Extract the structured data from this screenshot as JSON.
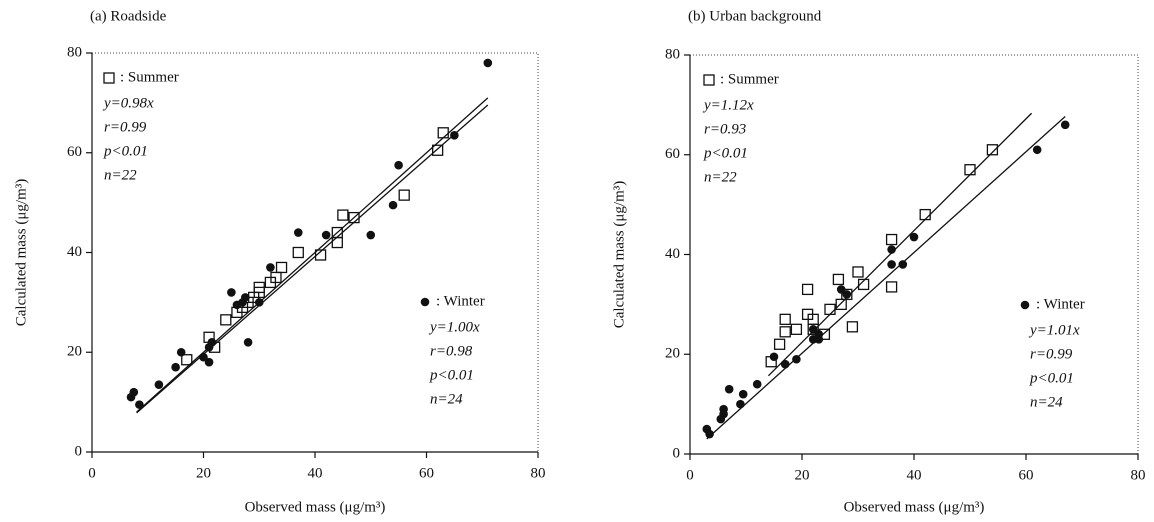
{
  "chart_data": [
    {
      "type": "scatter",
      "title": "(a) Roadside",
      "x_label": "Observed mass (μg/m³)",
      "y_label": "Calculated mass (μg/m³)",
      "xlim": [
        0,
        80
      ],
      "ylim": [
        0,
        80
      ],
      "xticks": [
        0,
        20,
        40,
        60,
        80
      ],
      "yticks": [
        0,
        20,
        40,
        60,
        80
      ],
      "series": [
        {
          "name": ": Summer",
          "marker": "square",
          "color": "#111111",
          "x": [
            21,
            24,
            27,
            28,
            30,
            30,
            32,
            33,
            34,
            37,
            41,
            44,
            44,
            45,
            47,
            56,
            62,
            63,
            22,
            17,
            26,
            29
          ],
          "y": [
            23,
            26.5,
            29,
            30,
            33,
            32,
            34,
            35,
            37,
            40,
            39.5,
            42,
            44,
            47.5,
            47,
            51.5,
            60.5,
            64,
            21,
            18.5,
            28,
            31
          ],
          "fit_slope": 0.98,
          "fit_x": [
            8,
            71
          ],
          "annotations": [
            "y=0.98x",
            "r=0.99",
            "p<0.01",
            "n=22"
          ]
        },
        {
          "name": ": Winter",
          "marker": "dot",
          "color": "#111111",
          "x": [
            7,
            7.5,
            8.5,
            12,
            15,
            16,
            21,
            21,
            21.5,
            25,
            26,
            27,
            27.5,
            28,
            30,
            32,
            37,
            42,
            50,
            54,
            55,
            65,
            71,
            20
          ],
          "y": [
            11,
            12,
            9.5,
            13.5,
            17,
            20,
            18,
            21,
            22,
            32,
            29.5,
            30,
            31,
            22,
            30,
            37,
            44,
            43.5,
            43.5,
            49.5,
            57.5,
            63.5,
            78,
            19
          ],
          "fit_slope": 1.0,
          "fit_x": [
            8,
            71
          ],
          "annotations": [
            "y=1.00x",
            "r=0.98",
            "p<0.01",
            "n=24"
          ]
        }
      ]
    },
    {
      "type": "scatter",
      "title": "(b) Urban background",
      "x_label": "Observed mass (μg/m³)",
      "y_label": "Calculated mass (μg/m³)",
      "xlim": [
        0,
        80
      ],
      "ylim": [
        0,
        80
      ],
      "xticks": [
        0,
        20,
        40,
        60,
        80
      ],
      "yticks": [
        0,
        20,
        40,
        60,
        80
      ],
      "series": [
        {
          "name": ": Summer",
          "marker": "square",
          "color": "#111111",
          "x": [
            14.5,
            16,
            17,
            17,
            19,
            21,
            21,
            22,
            25,
            26.5,
            27,
            29,
            30,
            31,
            36,
            36,
            42,
            50,
            54,
            22,
            28,
            24
          ],
          "y": [
            18.5,
            22,
            24.5,
            27,
            25,
            28,
            33,
            27,
            29,
            35,
            30,
            25.5,
            36.5,
            34,
            43,
            33.5,
            48,
            57,
            61,
            25,
            32,
            24
          ],
          "fit_slope": 1.12,
          "fit_x": [
            14,
            61
          ],
          "annotations": [
            "y=1.12x",
            "r=0.93",
            "p<0.01",
            "n=22"
          ]
        },
        {
          "name": ": Winter",
          "marker": "dot",
          "color": "#111111",
          "x": [
            3,
            3.5,
            5.5,
            6,
            6,
            7,
            9,
            9.5,
            12,
            15,
            17,
            19,
            22,
            22,
            23,
            23,
            27,
            28,
            36,
            36,
            38,
            40,
            62,
            67
          ],
          "y": [
            5,
            4,
            7,
            9,
            8,
            13,
            10,
            12,
            14,
            19.5,
            18,
            19,
            23,
            25,
            24,
            23,
            33,
            32,
            41,
            38,
            38,
            43.5,
            61,
            66
          ],
          "fit_slope": 1.01,
          "fit_x": [
            3,
            67
          ],
          "annotations": [
            "y=1.01x",
            "r=0.99",
            "p<0.01",
            "n=24"
          ]
        }
      ]
    }
  ]
}
